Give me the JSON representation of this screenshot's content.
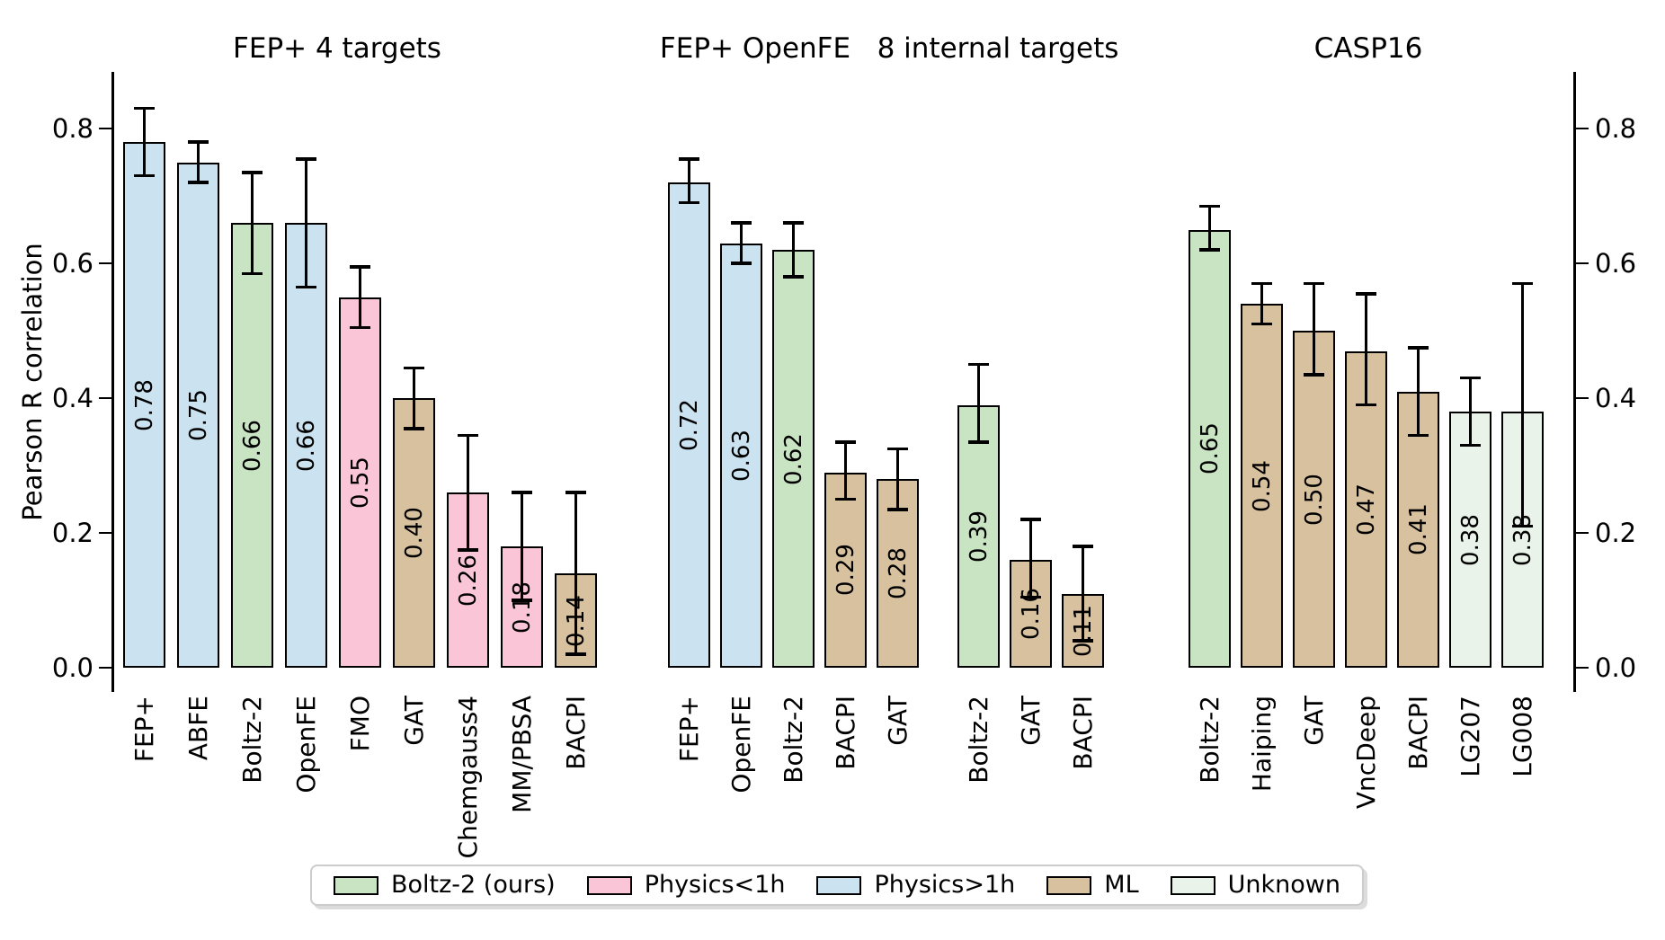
{
  "axes": {
    "ylabel": "Pearson R correlation",
    "yticks": [
      "0.0",
      "0.2",
      "0.4",
      "0.6",
      "0.8"
    ]
  },
  "colors": {
    "boltz2": "#c8e4c3",
    "physics_lt_1h": "#fac6d7",
    "physics_gt_1h": "#cbe3f0",
    "ml": "#d7c19e",
    "unknown": "#e9f3ea",
    "edge": "#000000"
  },
  "legend": {
    "items": [
      {
        "label": "Boltz-2 (ours)",
        "category": "boltz2"
      },
      {
        "label": "Physics<1h",
        "category": "physics_lt_1h"
      },
      {
        "label": "Physics>1h",
        "category": "physics_gt_1h"
      },
      {
        "label": "ML",
        "category": "ml"
      },
      {
        "label": "Unknown",
        "category": "unknown"
      }
    ]
  },
  "chart_data": {
    "type": "bar",
    "ylabel": "Pearson R correlation",
    "ylim": [
      0,
      0.88
    ],
    "grid": false,
    "legend_position": "bottom",
    "groups": [
      {
        "title": "FEP+ 4 targets",
        "bars": [
          {
            "label": "FEP+",
            "value": 0.78,
            "err_lo": 0.05,
            "err_hi": 0.05,
            "category": "physics_gt_1h"
          },
          {
            "label": "ABFE",
            "value": 0.75,
            "err_lo": 0.03,
            "err_hi": 0.03,
            "category": "physics_gt_1h"
          },
          {
            "label": "Boltz-2",
            "value": 0.66,
            "err_lo": 0.075,
            "err_hi": 0.075,
            "category": "boltz2"
          },
          {
            "label": "OpenFE",
            "value": 0.66,
            "err_lo": 0.095,
            "err_hi": 0.095,
            "category": "physics_gt_1h"
          },
          {
            "label": "FMO",
            "value": 0.55,
            "err_lo": 0.045,
            "err_hi": 0.045,
            "category": "physics_lt_1h"
          },
          {
            "label": "GAT",
            "value": 0.4,
            "err_lo": 0.045,
            "err_hi": 0.045,
            "category": "ml"
          },
          {
            "label": "Chemgauss4",
            "value": 0.26,
            "err_lo": 0.085,
            "err_hi": 0.085,
            "category": "physics_lt_1h"
          },
          {
            "label": "MM/PBSA",
            "value": 0.18,
            "err_lo": 0.08,
            "err_hi": 0.08,
            "category": "physics_lt_1h"
          },
          {
            "label": "BACPI",
            "value": 0.14,
            "err_lo": 0.12,
            "err_hi": 0.12,
            "category": "ml"
          }
        ]
      },
      {
        "title": "FEP+ OpenFE",
        "bars": [
          {
            "label": "FEP+",
            "value": 0.72,
            "err_lo": 0.03,
            "err_hi": 0.035,
            "category": "physics_gt_1h"
          },
          {
            "label": "OpenFE",
            "value": 0.63,
            "err_lo": 0.03,
            "err_hi": 0.03,
            "category": "physics_gt_1h"
          },
          {
            "label": "Boltz-2",
            "value": 0.62,
            "err_lo": 0.04,
            "err_hi": 0.04,
            "category": "boltz2"
          },
          {
            "label": "BACPI",
            "value": 0.29,
            "err_lo": 0.04,
            "err_hi": 0.045,
            "category": "ml"
          },
          {
            "label": "GAT",
            "value": 0.28,
            "err_lo": 0.045,
            "err_hi": 0.045,
            "category": "ml"
          }
        ]
      },
      {
        "title": "8 internal targets",
        "bars": [
          {
            "label": "Boltz-2",
            "value": 0.39,
            "err_lo": 0.055,
            "err_hi": 0.06,
            "category": "boltz2"
          },
          {
            "label": "GAT",
            "value": 0.16,
            "err_lo": 0.055,
            "err_hi": 0.06,
            "category": "ml"
          },
          {
            "label": "BACPI",
            "value": 0.11,
            "err_lo": 0.07,
            "err_hi": 0.07,
            "category": "ml"
          }
        ]
      },
      {
        "title": "CASP16",
        "bars": [
          {
            "label": "Boltz-2",
            "value": 0.65,
            "err_lo": 0.03,
            "err_hi": 0.035,
            "category": "boltz2"
          },
          {
            "label": "Haiping",
            "value": 0.54,
            "err_lo": 0.03,
            "err_hi": 0.03,
            "category": "ml"
          },
          {
            "label": "GAT",
            "value": 0.5,
            "err_lo": 0.065,
            "err_hi": 0.07,
            "category": "ml"
          },
          {
            "label": "VncDeep",
            "value": 0.47,
            "err_lo": 0.08,
            "err_hi": 0.085,
            "category": "ml"
          },
          {
            "label": "BACPI",
            "value": 0.41,
            "err_lo": 0.065,
            "err_hi": 0.065,
            "category": "ml"
          },
          {
            "label": "LG207",
            "value": 0.38,
            "err_lo": 0.05,
            "err_hi": 0.05,
            "category": "unknown"
          },
          {
            "label": "LG008",
            "value": 0.38,
            "err_lo": 0.17,
            "err_hi": 0.19,
            "category": "unknown"
          }
        ]
      }
    ]
  }
}
